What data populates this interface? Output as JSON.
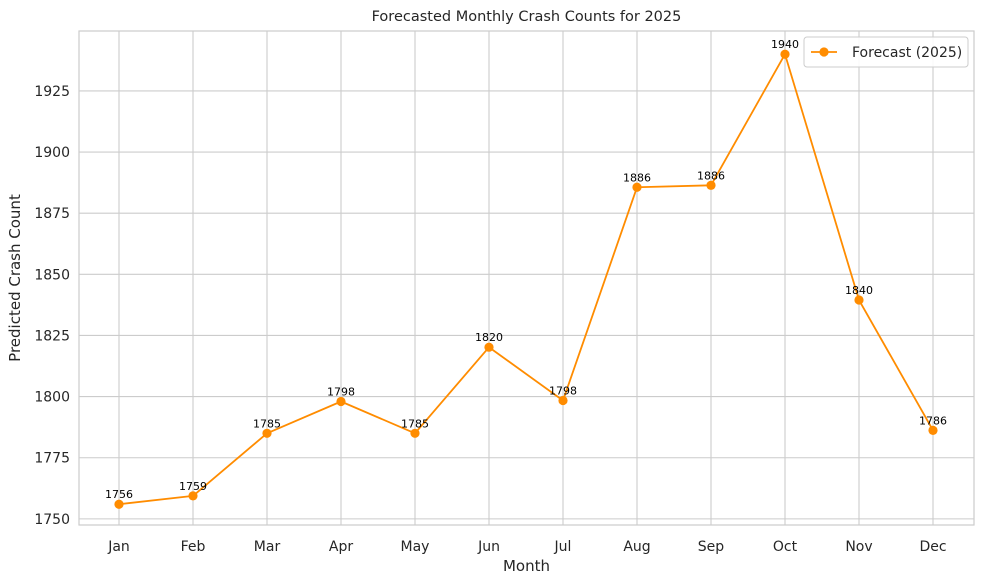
{
  "chart_data": {
    "type": "line",
    "title": "Forecasted Monthly Crash Counts for 2025",
    "xlabel": "Month",
    "ylabel": "Predicted Crash Count",
    "categories": [
      "Jan",
      "Feb",
      "Mar",
      "Apr",
      "May",
      "Jun",
      "Jul",
      "Aug",
      "Sep",
      "Oct",
      "Nov",
      "Dec"
    ],
    "series": [
      {
        "name": "Forecast (2025)",
        "values": [
          1756,
          1759.4,
          1785,
          1798,
          1785,
          1820.2,
          1798.4,
          1885.6,
          1886.4,
          1940,
          1839.5,
          1786.2
        ],
        "labels": [
          "1756",
          "1759",
          "1785",
          "1798",
          "1785",
          "1820",
          "1798",
          "1886",
          "1886",
          "1940",
          "1840",
          "1786"
        ],
        "color": "#ff8c00",
        "marker": "circle"
      }
    ],
    "ylim": [
      1747.5,
      1949.5
    ],
    "yticks": [
      1750,
      1775,
      1800,
      1825,
      1850,
      1875,
      1900,
      1925
    ],
    "grid": true,
    "legend": "top-right",
    "colors": {
      "line": "#ff8c00",
      "grid": "#cccccc",
      "axes_edge": "#cccccc",
      "text": "#262626"
    }
  }
}
